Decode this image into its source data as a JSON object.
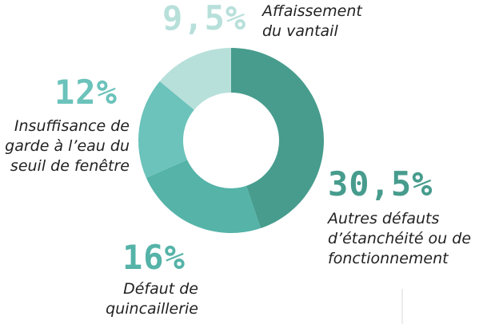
{
  "colors": {
    "affaissement": "#b8e0db",
    "insuffisance": "#6bc3bb",
    "quincaillerie": "#55b3a8",
    "autres": "#479c8d",
    "label_text": "#222222",
    "divider": "#d9d9d9"
  },
  "chart_data": {
    "type": "pie",
    "donut": true,
    "grid": false,
    "slices": [
      {
        "pct_label": "30,5%",
        "value": 30.5,
        "label_lines": [
          "Autres défauts",
          "d’étanchéité ou de",
          "fonctionnement"
        ],
        "color": "#479c8d",
        "label_color": "#479c8d"
      },
      {
        "pct_label": "16%",
        "value": 16,
        "label_lines": [
          "Défaut de",
          "quincaillerie"
        ],
        "color": "#55b3a8",
        "label_color": "#55b3a8"
      },
      {
        "pct_label": "12%",
        "value": 12,
        "label_lines": [
          "Insuffisance de",
          "garde à l’eau du",
          "seuil de fenêtre"
        ],
        "color": "#6bc3bb",
        "label_color": "#6bc3bb"
      },
      {
        "pct_label": "9,5%",
        "value": 9.5,
        "label_lines": [
          "Affaissement",
          "du vantail"
        ],
        "color": "#b8e0db",
        "label_color": "#b8e0db"
      }
    ]
  }
}
